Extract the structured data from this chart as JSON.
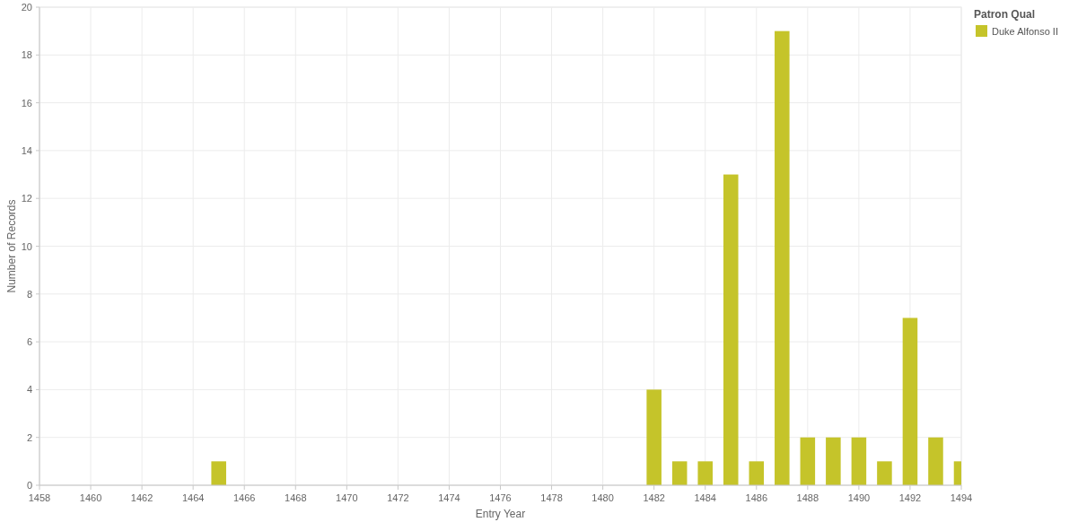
{
  "chart_data": {
    "type": "bar",
    "xlabel": "Entry Year",
    "ylabel": "Number of Records",
    "legend_title": "Patron Qual",
    "x": [
      1465,
      1482,
      1483,
      1484,
      1485,
      1486,
      1487,
      1488,
      1489,
      1490,
      1491,
      1492,
      1493,
      1494
    ],
    "series": [
      {
        "name": "Duke Alfonso II",
        "color": "#c5c42a",
        "values": [
          1,
          4,
          1,
          1,
          13,
          1,
          19,
          2,
          2,
          2,
          1,
          7,
          2,
          1
        ]
      }
    ],
    "xlim": [
      1458,
      1494
    ],
    "xticks": [
      1458,
      1460,
      1462,
      1464,
      1466,
      1468,
      1470,
      1472,
      1474,
      1476,
      1478,
      1480,
      1482,
      1484,
      1486,
      1488,
      1490,
      1492,
      1494
    ],
    "ylim": [
      0,
      20
    ],
    "yticks": [
      0,
      2,
      4,
      6,
      8,
      10,
      12,
      14,
      16,
      18,
      20
    ],
    "grid": true,
    "legend": "top right"
  }
}
